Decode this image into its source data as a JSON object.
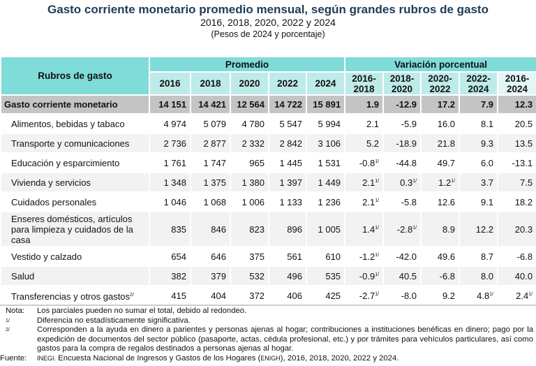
{
  "title": "Gasto corriente monetario promedio mensual, según grandes rubros de gasto",
  "subtitle": "2016, 2018, 2020, 2022 y 2024",
  "units": "(Pesos de 2024 y porcentaje)",
  "table": {
    "label_header": "Rubros de gasto",
    "group_promedio": "Promedio",
    "group_variacion": "Variación porcentual",
    "years": [
      "2016",
      "2018",
      "2020",
      "2022",
      "2024"
    ],
    "periods": [
      "2016-\n2018",
      "2018-\n2020",
      "2020-\n2022",
      "2022-\n2024",
      "2016-\n2024"
    ],
    "total": {
      "label": "Gasto corriente monetario",
      "values": [
        "14 151",
        "14 421",
        "12 564",
        "14 722",
        "15 891"
      ],
      "var": [
        "1.9",
        "-12.9",
        "17.2",
        "7.9",
        "12.3"
      ]
    },
    "rows": [
      {
        "label": "Alimentos, bebidas y tabaco",
        "values": [
          "4 974",
          "5 079",
          "4 780",
          "5 547",
          "5 994"
        ],
        "var": [
          "2.1",
          "-5.9",
          "16.0",
          "8.1",
          "20.5"
        ],
        "sup": [
          "",
          "",
          "",
          "",
          ""
        ]
      },
      {
        "label": "Transporte y comunicaciones",
        "values": [
          "2 736",
          "2 877",
          "2 332",
          "2 842",
          "3 106"
        ],
        "var": [
          "5.2",
          "-18.9",
          "21.8",
          "9.3",
          "13.5"
        ],
        "sup": [
          "",
          "",
          "",
          "",
          ""
        ]
      },
      {
        "label": "Educación y esparcimiento",
        "values": [
          "1 761",
          "1 747",
          "965",
          "1 445",
          "1 531"
        ],
        "var": [
          "-0.8",
          "-44.8",
          "49.7",
          "6.0",
          "-13.1"
        ],
        "sup": [
          "1/",
          "",
          "",
          "",
          ""
        ]
      },
      {
        "label": "Vivienda y servicios",
        "values": [
          "1 348",
          "1 375",
          "1 380",
          "1 397",
          "1 449"
        ],
        "var": [
          "2.1",
          "0.3",
          "1.2",
          "3.7",
          "7.5"
        ],
        "sup": [
          "1/",
          "1/",
          "1/",
          "",
          ""
        ]
      },
      {
        "label": "Cuidados personales",
        "values": [
          "1 046",
          "1 068",
          "1 006",
          "1 133",
          "1 236"
        ],
        "var": [
          "2.1",
          "-5.8",
          "12.6",
          "9.1",
          "18.2"
        ],
        "sup": [
          "1/",
          "",
          "",
          "",
          ""
        ]
      },
      {
        "label": "Enseres domésticos, artículos para limpieza y cuidados de la casa",
        "values": [
          "835",
          "846",
          "823",
          "896",
          "1 005"
        ],
        "var": [
          "1.4",
          "-2.8",
          "8.9",
          "12.2",
          "20.3"
        ],
        "sup": [
          "1/",
          "1/",
          "",
          "",
          ""
        ]
      },
      {
        "label": "Vestido y calzado",
        "values": [
          "654",
          "646",
          "375",
          "561",
          "610"
        ],
        "var": [
          "-1.2",
          "-42.0",
          "49.6",
          "8.7",
          "-6.8"
        ],
        "sup": [
          "1/",
          "",
          "",
          "",
          ""
        ]
      },
      {
        "label": "Salud",
        "values": [
          "382",
          "379",
          "532",
          "496",
          "535"
        ],
        "var": [
          "-0.9",
          "40.5",
          "-6.8",
          "8.0",
          "40.0"
        ],
        "sup": [
          "1/",
          "",
          "",
          "",
          ""
        ]
      },
      {
        "label": "Transferencias y otros gastos",
        "label_sup": "2/",
        "values": [
          "415",
          "404",
          "372",
          "406",
          "425"
        ],
        "var": [
          "-2.7",
          "-8.0",
          "9.2",
          "4.8",
          "2.4"
        ],
        "sup": [
          "1/",
          "",
          "",
          "1/",
          "1/"
        ]
      }
    ]
  },
  "notes": {
    "nota_key": "Nota:",
    "nota": "Los parciales pueden no sumar el total, debido al redondeo.",
    "n1_key": "1/",
    "n1": "Diferencia no estadísticamente significativa.",
    "n2_key": "2/",
    "n2": "Corresponden a la ayuda en dinero a parientes y personas ajenas al hogar; contribuciones a instituciones benéficas en dinero; pago por la expedición de documentos del sector público (pasaporte, actas, cédula profesional, etc.) y por trámites para vehículos particulares, así como gastos para la compra de regalos destinados a personas ajenas al hogar.",
    "fuente_key": "Fuente:",
    "fuente_inst": "INEGI.",
    "fuente_a": " Encuesta Nacional de Ingresos y Gastos de los Hogares (",
    "fuente_acr": "ENIGH",
    "fuente_b": "), 2016, 2018, 2020, 2022 y 2024."
  },
  "colors": {
    "header": "#7fdcd9",
    "subheader": "#bdebe9",
    "total_row": "#c4c4c4",
    "alt_row": "#f2f2f2",
    "title": "#1f3a5a"
  }
}
